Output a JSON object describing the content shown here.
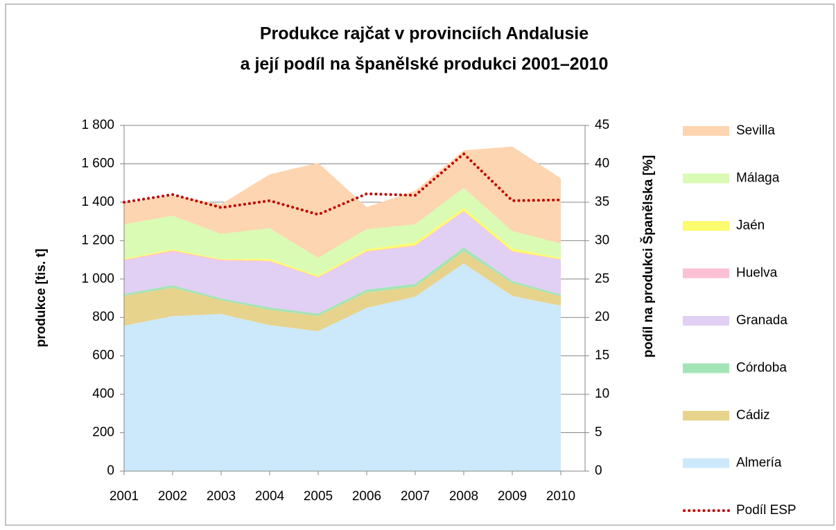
{
  "chart_data": {
    "type": "stacked_area",
    "title": [
      "Produkce rajčat v provinciích Andalusie",
      "a její podíl na španělské produkci 2001–2010"
    ],
    "ylabel": "produkce [tis. t]",
    "y2label": "podíl na produkci Španělska [%]",
    "categories": [
      "2001",
      "2002",
      "2003",
      "2004",
      "2005",
      "2006",
      "2007",
      "2008",
      "2009",
      "2010"
    ],
    "ylim": [
      0,
      1800
    ],
    "yticks": [
      0,
      200,
      400,
      600,
      800,
      {
        "value": 1000,
        "label": "1 000"
      },
      {
        "value": 1200,
        "label": "1 200"
      },
      {
        "value": 1400,
        "label": "1 400"
      },
      {
        "value": 1600,
        "label": "1 600"
      },
      {
        "value": 1800,
        "label": "1 800"
      }
    ],
    "y2lim": [
      0,
      45
    ],
    "y2ticks": [
      0,
      5,
      10,
      15,
      20,
      25,
      30,
      35,
      40,
      45
    ],
    "grid": true,
    "legend": "right",
    "series": [
      {
        "name": "Almería",
        "color": "#cce9fb",
        "values": [
          757,
          807,
          818,
          760,
          728,
          850,
          908,
          1081,
          912,
          861
        ]
      },
      {
        "name": "Cádiz",
        "color": "#e7d38c",
        "values": [
          155,
          148,
          72,
          80,
          80,
          80,
          52,
          64,
          68,
          49
        ]
      },
      {
        "name": "Córdoba",
        "color": "#a3e4b6",
        "values": [
          10,
          13,
          10,
          12,
          12,
          15,
          15,
          20,
          10,
          10
        ]
      },
      {
        "name": "Granada",
        "color": "#e1d0f3",
        "values": [
          173,
          172,
          195,
          238,
          185,
          195,
          195,
          185,
          150,
          180
        ]
      },
      {
        "name": "Huelva",
        "color": "#fcc0d4",
        "values": [
          5,
          8,
          5,
          5,
          5,
          5,
          5,
          5,
          5,
          3
        ]
      },
      {
        "name": "Jaén",
        "color": "#fdfb6e",
        "values": [
          5,
          7,
          5,
          10,
          8,
          10,
          15,
          15,
          15,
          7
        ]
      },
      {
        "name": "Málaga",
        "color": "#d9fbb4",
        "values": [
          180,
          175,
          130,
          160,
          92,
          105,
          95,
          105,
          90,
          75
        ]
      },
      {
        "name": "Sevilla",
        "color": "#fdd5b0",
        "values": [
          110,
          105,
          155,
          280,
          495,
          115,
          175,
          195,
          440,
          340
        ]
      },
      {
        "name": "Podíl ESP",
        "color": "#c00000",
        "axis": "y2",
        "type": "line",
        "values": [
          35,
          36,
          34.3,
          35.2,
          33.4,
          36.1,
          35.9,
          41.3,
          35.2,
          35.3
        ]
      }
    ]
  }
}
